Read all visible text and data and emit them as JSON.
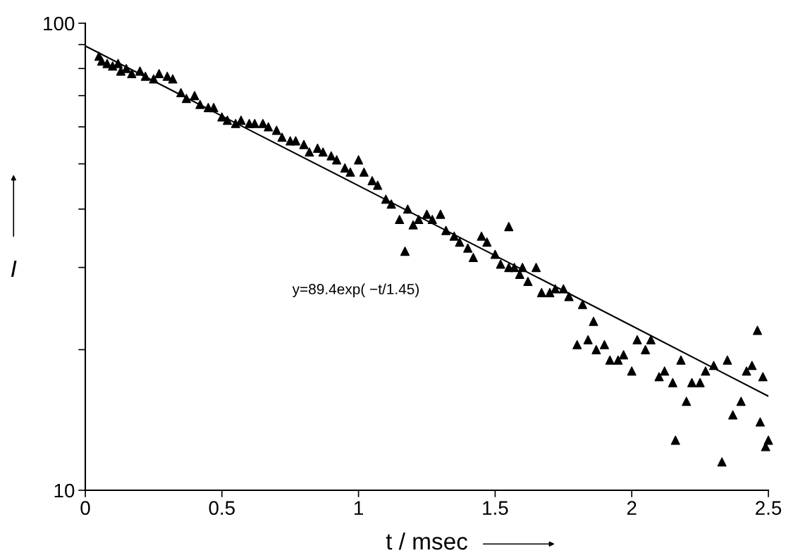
{
  "chart_data": {
    "type": "scatter",
    "xlabel": "t / msec",
    "ylabel": "I",
    "log": "y",
    "grid": false,
    "legend": false,
    "xlim": [
      0,
      2.5
    ],
    "xticks": [
      0,
      0.5,
      1,
      1.5,
      2,
      2.5
    ],
    "ylim": [
      10,
      100
    ],
    "yticks": [
      10,
      {
        "value": 20,
        "label": null
      },
      {
        "value": 30,
        "label": null
      },
      {
        "value": 40,
        "label": null
      },
      {
        "value": 50,
        "label": null
      },
      {
        "value": 60,
        "label": null
      },
      {
        "value": 70,
        "label": null
      },
      {
        "value": 80,
        "label": null
      },
      {
        "value": 90,
        "label": null
      },
      100
    ],
    "annotations": [
      "y=89.4exp( −t/1.45)"
    ],
    "series": [
      {
        "color": "#000000",
        "marker": "triangle",
        "x": [
          0.05,
          0.06,
          0.08,
          0.1,
          0.12,
          0.13,
          0.15,
          0.17,
          0.2,
          0.22,
          0.25,
          0.27,
          0.3,
          0.32,
          0.35,
          0.37,
          0.4,
          0.42,
          0.45,
          0.47,
          0.5,
          0.52,
          0.55,
          0.57,
          0.6,
          0.62,
          0.65,
          0.67,
          0.7,
          0.72,
          0.75,
          0.77,
          0.8,
          0.82,
          0.85,
          0.87,
          0.9,
          0.92,
          0.95,
          0.97,
          1.0,
          1.02,
          1.05,
          1.07,
          1.1,
          1.12,
          1.15,
          1.17,
          1.18,
          1.2,
          1.22,
          1.25,
          1.27,
          1.3,
          1.32,
          1.35,
          1.37,
          1.4,
          1.42,
          1.45,
          1.47,
          1.5,
          1.52,
          1.55,
          1.55,
          1.57,
          1.59,
          1.6,
          1.62,
          1.65,
          1.67,
          1.7,
          1.72,
          1.75,
          1.77,
          1.8,
          1.82,
          1.84,
          1.86,
          1.87,
          1.9,
          1.92,
          1.95,
          1.97,
          2.0,
          2.02,
          2.05,
          2.07,
          2.1,
          2.12,
          2.15,
          2.16,
          2.18,
          2.2,
          2.22,
          2.25,
          2.27,
          2.3,
          2.33,
          2.35,
          2.37,
          2.4,
          2.42,
          2.44,
          2.46,
          2.47,
          2.48,
          2.49,
          2.5
        ],
        "values": [
          85,
          83,
          82,
          81,
          82,
          79,
          80,
          78,
          79,
          77,
          76,
          78,
          77,
          76,
          71,
          69,
          70,
          67,
          66,
          66,
          63,
          62,
          61,
          62,
          61,
          61,
          61,
          60,
          59,
          57,
          56,
          56,
          55,
          53,
          54,
          53,
          52,
          51,
          49,
          48,
          51,
          48,
          46,
          45,
          42,
          41,
          38,
          32.5,
          40,
          37,
          38,
          39,
          38,
          39,
          36,
          35,
          34,
          33,
          31.5,
          35,
          34,
          32,
          30.5,
          30,
          36.7,
          30,
          29,
          30,
          28,
          30,
          26.5,
          26.5,
          27,
          27,
          26,
          20.5,
          25,
          21,
          23,
          20,
          20.5,
          19,
          19,
          19.5,
          18,
          21,
          20,
          21,
          17.5,
          18,
          17,
          12.8,
          19,
          15.5,
          17,
          17,
          18,
          18.5,
          11.5,
          19,
          14.5,
          15.5,
          18,
          18.5,
          22,
          14,
          17.5,
          12.4,
          12.8
        ]
      },
      {
        "type": "line",
        "color": "#000000",
        "line_style": "solid",
        "marker": "none",
        "x": [
          0,
          0.5,
          1,
          1.5,
          2,
          2.5
        ],
        "values": [
          89.4,
          63.3,
          44.9,
          31.8,
          22.5,
          15.9
        ]
      }
    ]
  }
}
